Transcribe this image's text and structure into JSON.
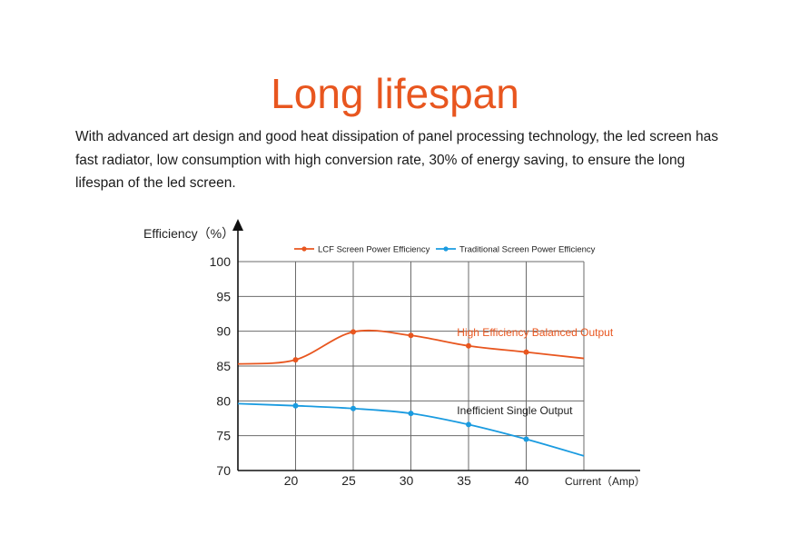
{
  "page": {
    "title": "Long lifespan",
    "description": "With advanced art design and good heat dissipation of panel processing technology, the led screen has fast radiator, low consumption with high conversion rate, 30% of energy saving,  to ensure the long lifespan of the led screen."
  },
  "chart_data": {
    "type": "line",
    "ylabel": "Efficiency（%）",
    "xlabel": "Current（Amp）",
    "xlim": [
      15,
      45
    ],
    "ylim": [
      70,
      100
    ],
    "x_ticks": [
      20,
      25,
      30,
      35,
      40
    ],
    "y_ticks": [
      70,
      75,
      80,
      85,
      90,
      95,
      100
    ],
    "grid": true,
    "legend_position": "top",
    "series": [
      {
        "name": "LCF Screen Power Efficiency",
        "color": "#e8561f",
        "x": [
          15,
          20,
          25,
          30,
          35,
          40,
          45
        ],
        "y": [
          85.3,
          85.9,
          89.9,
          89.4,
          87.9,
          87.0,
          86.1
        ],
        "markers_at": [
          20,
          25,
          30,
          35,
          40
        ],
        "annotation": "High Efficiency Balanced Output",
        "annotation_at": [
          34,
          89.8
        ]
      },
      {
        "name": "Traditional Screen Power Efficiency",
        "color": "#1a9be0",
        "x": [
          15,
          20,
          25,
          30,
          35,
          40,
          45
        ],
        "y": [
          79.6,
          79.3,
          78.9,
          78.2,
          76.6,
          74.5,
          72.1
        ],
        "markers_at": [
          20,
          25,
          30,
          35,
          40
        ],
        "annotation": "Inefficient Single Output",
        "annotation_at": [
          34,
          78.6
        ]
      }
    ]
  }
}
